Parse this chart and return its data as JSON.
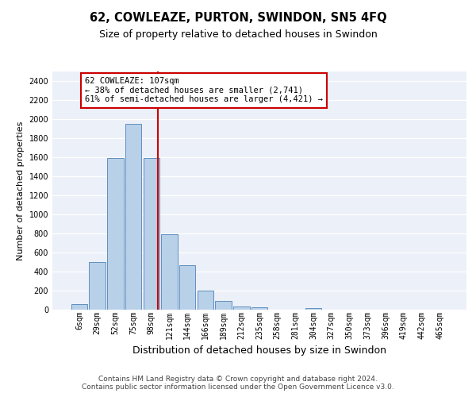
{
  "title": "62, COWLEAZE, PURTON, SWINDON, SN5 4FQ",
  "subtitle": "Size of property relative to detached houses in Swindon",
  "xlabel": "Distribution of detached houses by size in Swindon",
  "ylabel": "Number of detached properties",
  "categories": [
    "6sqm",
    "29sqm",
    "52sqm",
    "75sqm",
    "98sqm",
    "121sqm",
    "144sqm",
    "166sqm",
    "189sqm",
    "212sqm",
    "235sqm",
    "258sqm",
    "281sqm",
    "304sqm",
    "327sqm",
    "350sqm",
    "373sqm",
    "396sqm",
    "419sqm",
    "442sqm",
    "465sqm"
  ],
  "values": [
    60,
    500,
    1590,
    1950,
    1590,
    790,
    470,
    200,
    90,
    35,
    25,
    0,
    0,
    20,
    0,
    0,
    0,
    0,
    0,
    0,
    0
  ],
  "bar_color": "#b8d0e8",
  "bar_edge_color": "#6090c0",
  "bin_edges_sqm": [
    6,
    29,
    52,
    75,
    98,
    121,
    144,
    166,
    189,
    212,
    235,
    258,
    281,
    304,
    327,
    350,
    373,
    396,
    419,
    442,
    465
  ],
  "property_sqm": 107,
  "vline_color": "#cc0000",
  "annotation_line1": "62 COWLEAZE: 107sqm",
  "annotation_line2": "← 38% of detached houses are smaller (2,741)",
  "annotation_line3": "61% of semi-detached houses are larger (4,421) →",
  "annotation_box_edgecolor": "#cc0000",
  "plot_bg_color": "#ecf0f8",
  "grid_color": "#ffffff",
  "ylim": [
    0,
    2500
  ],
  "yticks": [
    0,
    200,
    400,
    600,
    800,
    1000,
    1200,
    1400,
    1600,
    1800,
    2000,
    2200,
    2400
  ],
  "footer_line1": "Contains HM Land Registry data © Crown copyright and database right 2024.",
  "footer_line2": "Contains public sector information licensed under the Open Government Licence v3.0.",
  "title_fontsize": 10.5,
  "subtitle_fontsize": 9,
  "ylabel_fontsize": 8,
  "xlabel_fontsize": 9,
  "tick_fontsize": 7,
  "footer_fontsize": 6.5
}
